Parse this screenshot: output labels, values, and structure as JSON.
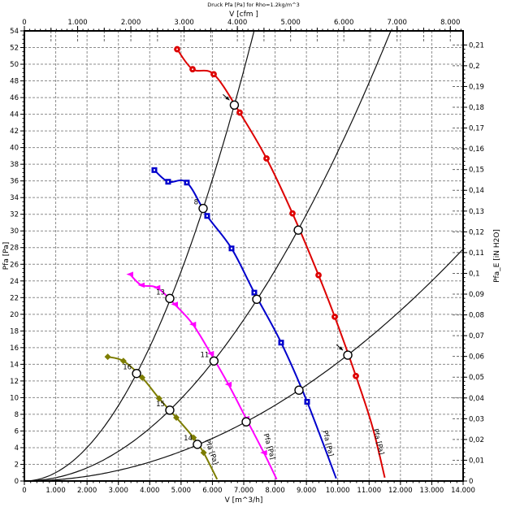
{
  "title": "Druck Pfa [Pa] for Rho=1.2kg/m^3",
  "chart_data": {
    "type": "line",
    "x_axis_bottom": {
      "label": "V [m^3/h]",
      "min": 0,
      "max": 14000,
      "major_step": 1000,
      "minor_step": 200,
      "tick_labels": [
        "0",
        "1.000",
        "2.000",
        "3.000",
        "4.000",
        "5.000",
        "6.000",
        "7.000",
        "8.000",
        "9.000",
        "10.000",
        "11.000",
        "12.000",
        "13.000",
        "14.000"
      ]
    },
    "x_axis_top": {
      "label": "V [cfm ]",
      "min": 0,
      "max": 8000,
      "major_step": 1000,
      "mid_step": 500,
      "minor_step": 100,
      "m3h_per_cfm": 1.699,
      "tick_labels": [
        "0",
        "1.000",
        "2.000",
        "3.000",
        "4.000",
        "5.000",
        "6.000",
        "7.000",
        "8.000"
      ]
    },
    "y_axis_left": {
      "label": "Pfa [Pa]",
      "min": 0,
      "max": 54,
      "major_step": 2,
      "minor_step": 0.5,
      "tick_labels": [
        "0",
        "2",
        "4",
        "6",
        "8",
        "10",
        "12",
        "14",
        "16",
        "18",
        "20",
        "22",
        "24",
        "26",
        "28",
        "30",
        "32",
        "34",
        "36",
        "38",
        "40",
        "42",
        "44",
        "46",
        "48",
        "50",
        "52",
        "54"
      ]
    },
    "y_axis_right": {
      "label": "Pfa_E [iN H2O]",
      "min": 0,
      "max": 0.21,
      "major_step": 0.01,
      "minor_step": 0.002,
      "pa_per_unit": 249.089,
      "tick_labels": [
        "0",
        "0,01",
        "0,02",
        "0,03",
        "0,04",
        "0,05",
        "0,06",
        "0,07",
        "0,08",
        "0,09",
        "0,1",
        "0,11",
        "0,12",
        "0,13",
        "0,14",
        "0,15",
        "0,16",
        "0,17",
        "0,18",
        "0,19",
        "0,2",
        "0,21"
      ]
    },
    "fan_curves": [
      {
        "name": "fan-curve-red",
        "color": "#dd0000",
        "marker": "circle",
        "curve_label": "Pfa [Pa]",
        "label_v": 11030,
        "label_pa": 6.2,
        "label_angle": 76,
        "n_markers": 9,
        "points": [
          [
            4875,
            51.8
          ],
          [
            5367,
            49.4
          ],
          [
            6041,
            48.8
          ],
          [
            6870,
            44.2
          ],
          [
            7726,
            38.7
          ],
          [
            8556,
            32.1
          ],
          [
            9386,
            24.7
          ],
          [
            9904,
            19.7
          ],
          [
            10578,
            12.6
          ],
          [
            11100,
            6.6
          ],
          [
            11500,
            0.4
          ]
        ]
      },
      {
        "name": "fan-curve-blue",
        "color": "#0000cc",
        "marker": "square",
        "curve_label": "Pfa [Pa]",
        "label_v": 9420,
        "label_pa": 6.0,
        "label_angle": 76,
        "n_markers": 8,
        "points": [
          [
            4148,
            37.3
          ],
          [
            4588,
            35.9
          ],
          [
            5185,
            35.8
          ],
          [
            5833,
            31.8
          ],
          [
            6611,
            27.9
          ],
          [
            7337,
            22.6
          ],
          [
            8193,
            16.6
          ],
          [
            9022,
            9.5
          ],
          [
            9950,
            0.3
          ]
        ]
      },
      {
        "name": "fan-curve-magenta",
        "color": "#ff00ff",
        "marker": "triangle",
        "curve_label": "Pfa [Pa]",
        "label_v": 7530,
        "label_pa": 5.6,
        "label_angle": 74,
        "n_markers": 9,
        "points": [
          [
            3370,
            24.8
          ],
          [
            3733,
            23.5
          ],
          [
            4233,
            23.2
          ],
          [
            4796,
            21.2
          ],
          [
            5375,
            18.8
          ],
          [
            5945,
            15.3
          ],
          [
            6510,
            11.6
          ],
          [
            7075,
            7.5
          ],
          [
            7640,
            3.4
          ],
          [
            8050,
            0.2
          ]
        ]
      },
      {
        "name": "fan-curve-olive",
        "color": "#7d7d00",
        "marker": "diamond",
        "curve_label": "Pfa [Pa]",
        "label_v": 5660,
        "label_pa": 4.9,
        "label_angle": 70,
        "n_markers": 7,
        "points": [
          [
            2660,
            14.9
          ],
          [
            3160,
            14.4
          ],
          [
            3760,
            12.4
          ],
          [
            4300,
            9.9
          ],
          [
            4850,
            7.6
          ],
          [
            5400,
            5.2
          ],
          [
            5720,
            3.4
          ],
          [
            6150,
            0.2
          ]
        ]
      }
    ],
    "system_curves": [
      {
        "name": "system-curve-1",
        "k": 1.005e-06,
        "v_end": 7340
      },
      {
        "name": "system-curve-2",
        "k": 3.95e-07,
        "v_end": 11700
      },
      {
        "name": "system-curve-3",
        "k": 1.42e-07,
        "v_end": 14000
      }
    ],
    "operating_points": [
      {
        "v": 6700,
        "pa": 45.1,
        "label": "",
        "arrow": true
      },
      {
        "v": 5704,
        "pa": 32.7,
        "label": "8",
        "arrow": false
      },
      {
        "v": 4640,
        "pa": 21.9,
        "label": "13",
        "arrow": false
      },
      {
        "v": 3580,
        "pa": 12.9,
        "label": "16",
        "arrow": false
      },
      {
        "v": 8740,
        "pa": 30.1,
        "label": "",
        "arrow": false
      },
      {
        "v": 7415,
        "pa": 21.8,
        "label": "",
        "arrow": false
      },
      {
        "v": 6050,
        "pa": 14.4,
        "label": "11",
        "arrow": false
      },
      {
        "v": 4640,
        "pa": 8.5,
        "label": "15",
        "arrow": false
      },
      {
        "v": 10320,
        "pa": 15.1,
        "label": "",
        "arrow": true
      },
      {
        "v": 8763,
        "pa": 10.9,
        "label": "",
        "arrow": false
      },
      {
        "v": 7078,
        "pa": 7.1,
        "label": "",
        "arrow": false
      },
      {
        "v": 5520,
        "pa": 4.4,
        "label": "14",
        "arrow": false
      }
    ],
    "grid": {
      "color": "#8c8c8c",
      "dash": "3 2"
    }
  }
}
